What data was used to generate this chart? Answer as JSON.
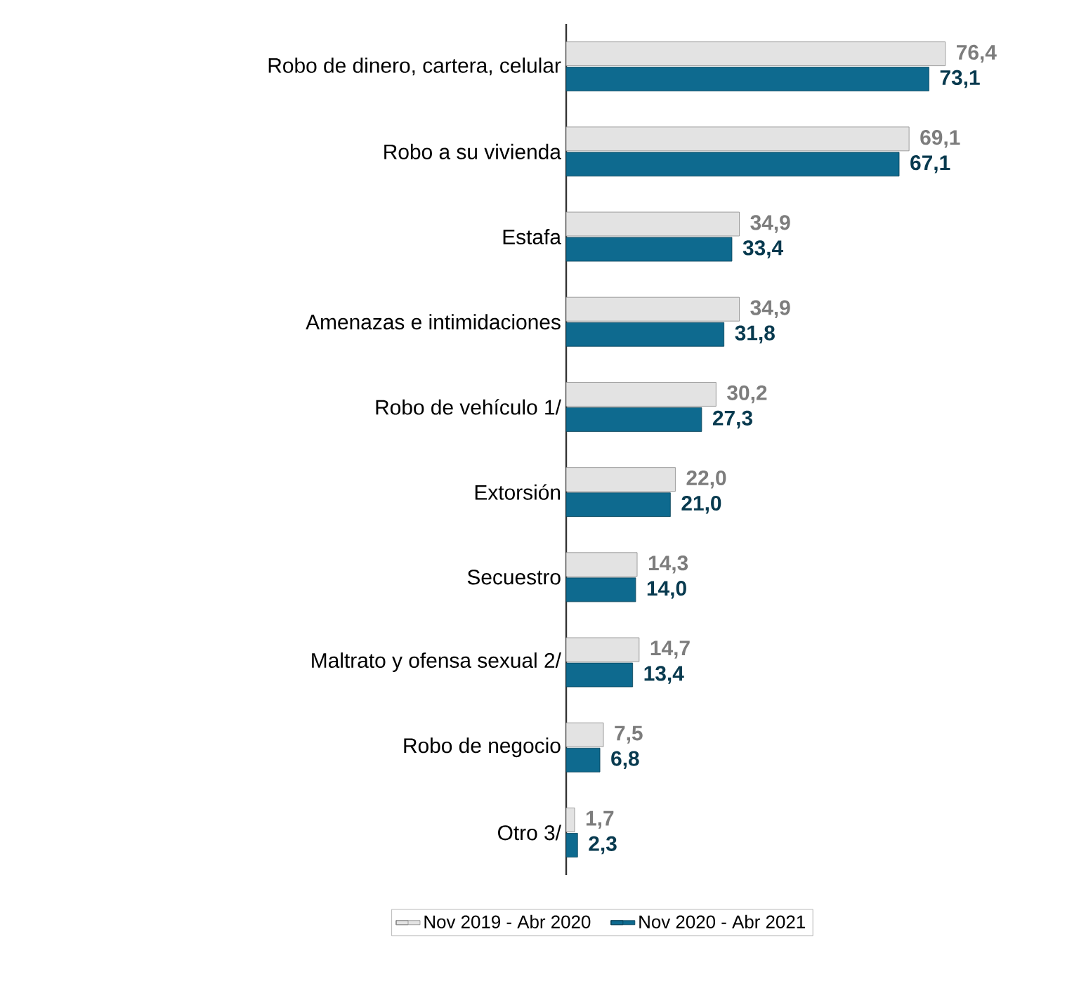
{
  "chart_data": {
    "type": "bar",
    "orientation": "horizontal",
    "legend": "bottom",
    "categories": [
      "Robo de dinero, cartera, celular",
      "Robo a su vivienda",
      "Estafa",
      "Amenazas e intimidaciones",
      "Robo  de vehículo 1/",
      "Extorsión",
      "Secuestro",
      "Maltrato y ofensa sexual 2/",
      "Robo de negocio",
      "Otro 3/"
    ],
    "series": [
      {
        "name": "Nov 2019 - Abr 2020",
        "color": "#e3e3e3",
        "values": [
          76.4,
          69.1,
          34.9,
          34.9,
          30.2,
          22.0,
          14.3,
          14.7,
          7.5,
          1.7
        ],
        "value_labels": [
          "76,4",
          "69,1",
          "34,9",
          "34,9",
          "30,2",
          "22,0",
          "14,3",
          "14,7",
          "7,5",
          "1,7"
        ]
      },
      {
        "name": "Nov 2020 - Abr 2021",
        "color": "#0e6a8f",
        "values": [
          73.1,
          67.1,
          33.4,
          31.8,
          27.3,
          21.0,
          14.0,
          13.4,
          6.8,
          2.3
        ],
        "value_labels": [
          "73,1",
          "67,1",
          "33,4",
          "31,8",
          "27,3",
          "21,0",
          "14,0",
          "13,4",
          "6,8",
          "2,3"
        ]
      }
    ]
  }
}
